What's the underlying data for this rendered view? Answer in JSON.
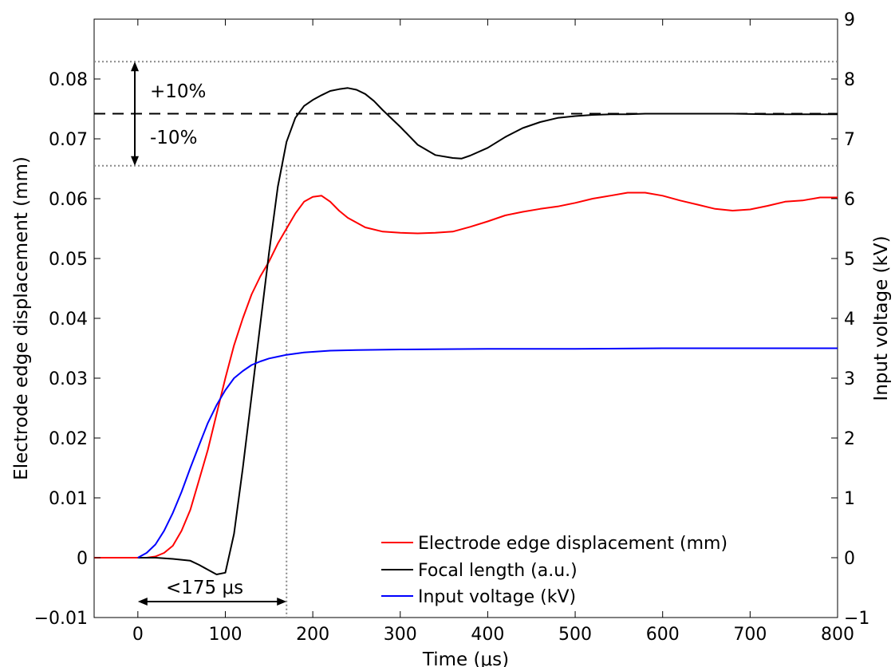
{
  "chart_data": {
    "type": "line",
    "xlabel": "Time (μs)",
    "ylabel_left": "Electrode edge displacement (mm)",
    "ylabel_right": "Input voltage (kV)",
    "xlim": [
      -50,
      800
    ],
    "ylim_left": [
      -0.01,
      0.09
    ],
    "ylim_right": [
      -1,
      9
    ],
    "x_ticks": [
      0,
      100,
      200,
      300,
      400,
      500,
      600,
      700,
      800
    ],
    "x_tick_labels": [
      "0",
      "100",
      "200",
      "300",
      "400",
      "500",
      "600",
      "700",
      "800"
    ],
    "y_left_ticks": [
      -0.01,
      0,
      0.01,
      0.02,
      0.03,
      0.04,
      0.05,
      0.06,
      0.07,
      0.08
    ],
    "y_left_tick_labels": [
      "−0.01",
      "0",
      "0.01",
      "0.02",
      "0.03",
      "0.04",
      "0.05",
      "0.06",
      "0.07",
      "0.08"
    ],
    "y_right_ticks": [
      -1,
      0,
      1,
      2,
      3,
      4,
      5,
      6,
      7,
      8,
      9
    ],
    "y_right_tick_labels": [
      "−1",
      "0",
      "1",
      "2",
      "3",
      "4",
      "5",
      "6",
      "7",
      "8",
      "9"
    ],
    "grid": false,
    "legend_position": "bottom-right",
    "series": [
      {
        "name": "Electrode edge displacement (mm)",
        "color": "#ff0000",
        "axis": "left",
        "x": [
          -50,
          -30,
          -10,
          0,
          10,
          20,
          30,
          40,
          50,
          60,
          70,
          80,
          90,
          100,
          110,
          120,
          130,
          140,
          150,
          160,
          170,
          180,
          190,
          200,
          210,
          220,
          230,
          240,
          260,
          280,
          300,
          320,
          340,
          360,
          380,
          400,
          420,
          440,
          460,
          480,
          500,
          520,
          540,
          560,
          580,
          600,
          620,
          640,
          660,
          680,
          700,
          720,
          740,
          760,
          780,
          800
        ],
        "values": [
          0,
          0,
          0,
          0,
          0,
          0.0002,
          0.0008,
          0.002,
          0.0045,
          0.008,
          0.013,
          0.018,
          0.024,
          0.03,
          0.0355,
          0.04,
          0.044,
          0.047,
          0.0495,
          0.0525,
          0.055,
          0.0575,
          0.0595,
          0.0603,
          0.0605,
          0.0595,
          0.058,
          0.0568,
          0.0552,
          0.0545,
          0.0543,
          0.0542,
          0.0543,
          0.0545,
          0.0553,
          0.0562,
          0.0572,
          0.0578,
          0.0583,
          0.0587,
          0.0593,
          0.06,
          0.0605,
          0.061,
          0.061,
          0.0605,
          0.0597,
          0.059,
          0.0583,
          0.058,
          0.0582,
          0.0588,
          0.0595,
          0.0597,
          0.0602,
          0.0602
        ]
      },
      {
        "name": "Focal length (a.u.)",
        "color": "#000000",
        "axis": "left",
        "x": [
          0,
          20,
          40,
          60,
          70,
          80,
          90,
          100,
          110,
          120,
          130,
          140,
          150,
          160,
          170,
          180,
          190,
          200,
          210,
          220,
          230,
          240,
          250,
          260,
          270,
          280,
          300,
          320,
          340,
          360,
          370,
          380,
          400,
          420,
          440,
          460,
          480,
          500,
          520,
          540,
          560,
          580,
          600,
          640,
          680,
          720,
          760,
          800
        ],
        "values": [
          0,
          0,
          -0.0002,
          -0.0005,
          -0.0012,
          -0.002,
          -0.0028,
          -0.0025,
          0.004,
          0.015,
          0.027,
          0.039,
          0.051,
          0.062,
          0.0695,
          0.0735,
          0.0755,
          0.0765,
          0.0773,
          0.078,
          0.0783,
          0.0785,
          0.0782,
          0.0775,
          0.0763,
          0.0748,
          0.072,
          0.069,
          0.0673,
          0.0668,
          0.0667,
          0.0672,
          0.0685,
          0.0703,
          0.0718,
          0.0728,
          0.0735,
          0.0738,
          0.074,
          0.0741,
          0.0741,
          0.0742,
          0.0742,
          0.0742,
          0.0742,
          0.0741,
          0.0741,
          0.0741
        ]
      },
      {
        "name": "Input voltage (kV)",
        "color": "#0000ff",
        "axis": "right",
        "x": [
          0,
          10,
          20,
          30,
          40,
          50,
          60,
          70,
          80,
          90,
          100,
          110,
          120,
          130,
          140,
          150,
          160,
          170,
          180,
          190,
          200,
          220,
          250,
          300,
          350,
          400,
          500,
          600,
          700,
          800
        ],
        "values": [
          0,
          0.08,
          0.22,
          0.45,
          0.75,
          1.1,
          1.5,
          1.88,
          2.25,
          2.55,
          2.8,
          3.0,
          3.12,
          3.22,
          3.28,
          3.33,
          3.36,
          3.39,
          3.41,
          3.43,
          3.44,
          3.46,
          3.47,
          3.48,
          3.485,
          3.49,
          3.49,
          3.5,
          3.5,
          3.5
        ]
      }
    ],
    "reference_lines": {
      "target": 0.0742,
      "upper_10pct": 0.0829,
      "lower_10pct": 0.0655,
      "vertical_x": 170
    },
    "annotations": {
      "plus": "+10%",
      "minus": "-10%",
      "time_span": "<175 μs"
    }
  }
}
